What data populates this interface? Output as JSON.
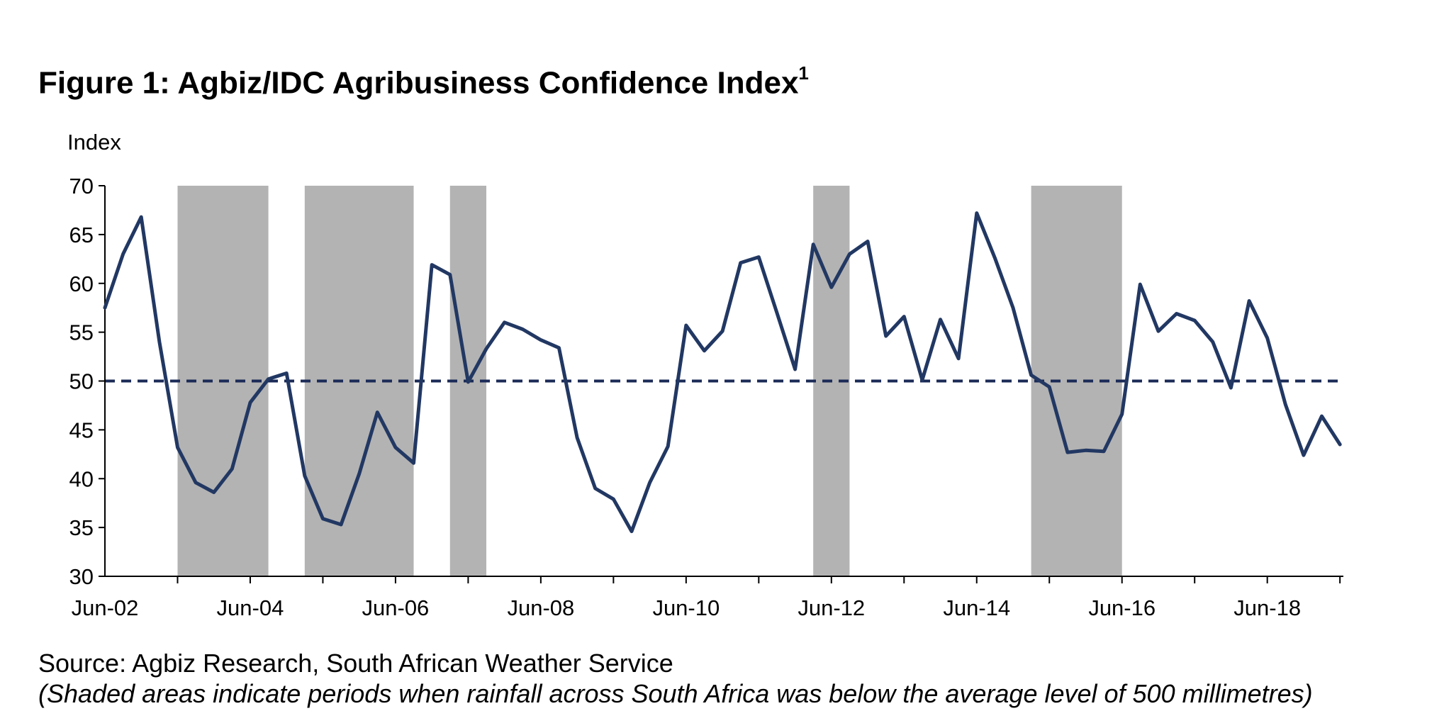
{
  "chart_data": {
    "type": "line",
    "title": "Figure 1: Agbiz/IDC Agribusiness Confidence Index",
    "title_superscript": "1",
    "ylabel": "Index",
    "xlabel": "",
    "ylim": [
      30,
      70
    ],
    "y_ticks": [
      30,
      35,
      40,
      45,
      50,
      55,
      60,
      65,
      70
    ],
    "x_tick_labels": [
      "Jun-02",
      "Jun-04",
      "Jun-06",
      "Jun-08",
      "Jun-10",
      "Jun-12",
      "Jun-14",
      "Jun-16",
      "Jun-18"
    ],
    "reference_line": {
      "value": 50,
      "style": "dashed",
      "color": "#1b2a57"
    },
    "series": [
      {
        "name": "Agbiz/IDC Agribusiness Confidence Index",
        "color": "#223863",
        "quarters_from_jun02": [
          0,
          1,
          2,
          3,
          4,
          5,
          6,
          7,
          8,
          9,
          10,
          11,
          12,
          13,
          14,
          15,
          16,
          17,
          18,
          19,
          20,
          21,
          22,
          23,
          24,
          25,
          26,
          27,
          28,
          29,
          30,
          31,
          32,
          33,
          34,
          35,
          36,
          37,
          38,
          39,
          40,
          41,
          42,
          43,
          44,
          45,
          46,
          47,
          48,
          49,
          50,
          51,
          52,
          53,
          54,
          55,
          56,
          57,
          58,
          59,
          60,
          61,
          62,
          63,
          64,
          65,
          66,
          67,
          68
        ],
        "values": [
          57.5,
          63.0,
          66.8,
          54.0,
          43.2,
          39.6,
          38.6,
          41.0,
          47.8,
          50.2,
          50.8,
          40.3,
          35.9,
          35.3,
          40.5,
          46.8,
          43.2,
          41.6,
          61.9,
          60.9,
          49.9,
          53.3,
          56.0,
          55.3,
          54.2,
          53.4,
          44.2,
          39.0,
          37.9,
          34.6,
          39.6,
          43.3,
          55.7,
          53.1,
          55.1,
          62.1,
          62.7,
          57.0,
          51.2,
          64.0,
          59.6,
          63.0,
          64.3,
          54.6,
          56.6,
          50.1,
          56.3,
          52.3,
          67.2,
          62.6,
          57.5,
          50.6,
          49.4,
          42.7,
          42.9,
          42.8,
          46.6,
          59.9,
          55.1,
          56.9,
          56.2,
          54.0,
          49.3,
          58.2,
          54.4,
          47.6,
          42.4,
          46.4,
          43.5
        ]
      }
    ],
    "shaded_periods": [
      {
        "label": "Below-average rainfall",
        "start_quarter": 4,
        "end_quarter": 9
      },
      {
        "label": "Below-average rainfall",
        "start_quarter": 11,
        "end_quarter": 17
      },
      {
        "label": "Below-average rainfall",
        "start_quarter": 19,
        "end_quarter": 21
      },
      {
        "label": "Below-average rainfall",
        "start_quarter": 39,
        "end_quarter": 41
      },
      {
        "label": "Below-average rainfall",
        "start_quarter": 51,
        "end_quarter": 56
      }
    ],
    "shade_color": "#b3b3b3",
    "source": "Source: Agbiz Research, South African Weather Service",
    "note": "(Shaded areas indicate periods when rainfall across South Africa was below the average level of 500 millimetres)"
  }
}
